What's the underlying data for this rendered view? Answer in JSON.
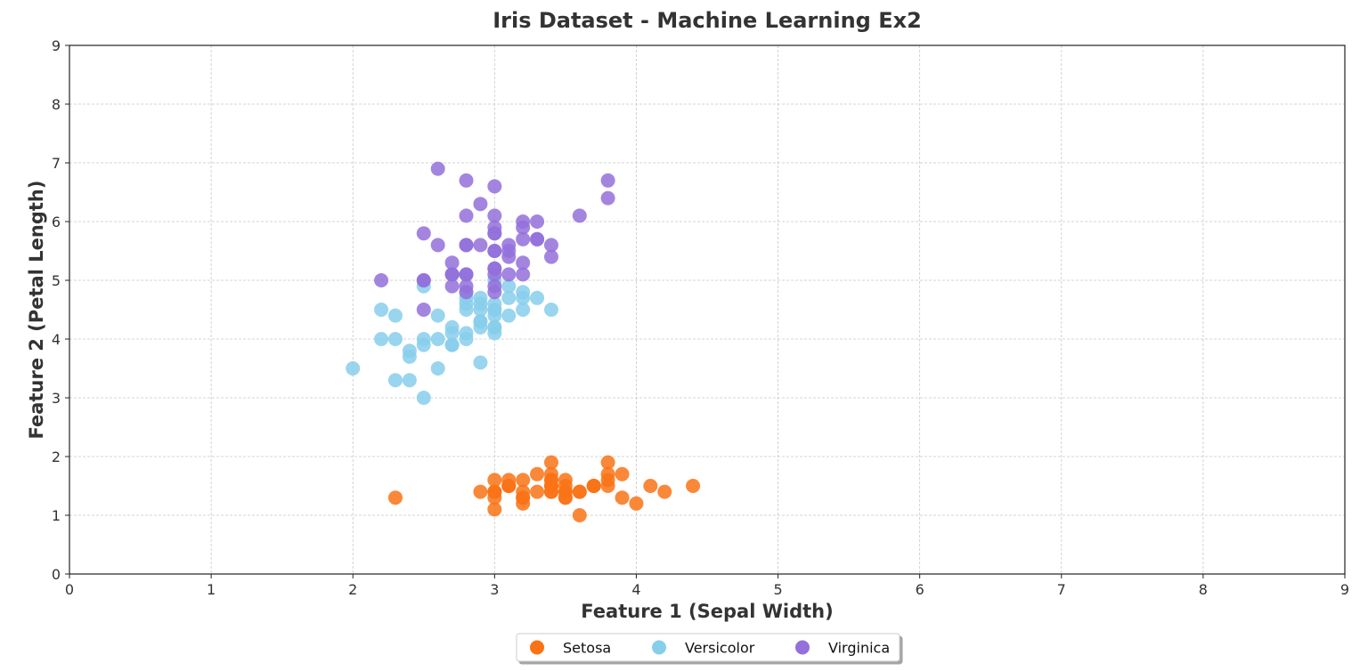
{
  "chart_data": {
    "type": "scatter",
    "title": "Iris Dataset - Machine Learning Ex2",
    "xlabel": "Feature 1 (Sepal Width)",
    "ylabel": "Feature 2 (Petal Length)",
    "xlim": [
      0,
      9
    ],
    "ylim": [
      0,
      9
    ],
    "x_ticks": [
      0,
      1,
      2,
      3,
      4,
      5,
      6,
      7,
      8,
      9
    ],
    "y_ticks": [
      0,
      1,
      2,
      3,
      4,
      5,
      6,
      7,
      8,
      9
    ],
    "grid": true,
    "legend_position": "bottom-center",
    "series": [
      {
        "name": "Setosa",
        "color": "#f97316",
        "points": [
          [
            3.5,
            1.4
          ],
          [
            3.0,
            1.4
          ],
          [
            3.2,
            1.3
          ],
          [
            3.1,
            1.5
          ],
          [
            3.6,
            1.4
          ],
          [
            3.9,
            1.7
          ],
          [
            3.4,
            1.4
          ],
          [
            3.4,
            1.5
          ],
          [
            2.9,
            1.4
          ],
          [
            3.1,
            1.5
          ],
          [
            3.7,
            1.5
          ],
          [
            3.4,
            1.6
          ],
          [
            3.0,
            1.4
          ],
          [
            3.0,
            1.1
          ],
          [
            4.0,
            1.2
          ],
          [
            4.4,
            1.5
          ],
          [
            3.9,
            1.3
          ],
          [
            3.5,
            1.4
          ],
          [
            3.8,
            1.7
          ],
          [
            3.8,
            1.5
          ],
          [
            3.4,
            1.7
          ],
          [
            3.7,
            1.5
          ],
          [
            3.6,
            1.0
          ],
          [
            3.3,
            1.7
          ],
          [
            3.4,
            1.9
          ],
          [
            3.0,
            1.6
          ],
          [
            3.4,
            1.6
          ],
          [
            3.5,
            1.5
          ],
          [
            3.4,
            1.4
          ],
          [
            3.2,
            1.6
          ],
          [
            3.1,
            1.6
          ],
          [
            3.4,
            1.5
          ],
          [
            4.1,
            1.5
          ],
          [
            4.2,
            1.4
          ],
          [
            3.1,
            1.5
          ],
          [
            3.2,
            1.2
          ],
          [
            3.5,
            1.3
          ],
          [
            3.6,
            1.4
          ],
          [
            3.0,
            1.3
          ],
          [
            3.4,
            1.5
          ],
          [
            3.5,
            1.3
          ],
          [
            2.3,
            1.3
          ],
          [
            3.2,
            1.3
          ],
          [
            3.5,
            1.6
          ],
          [
            3.8,
            1.9
          ],
          [
            3.0,
            1.4
          ],
          [
            3.8,
            1.6
          ],
          [
            3.2,
            1.4
          ],
          [
            3.7,
            1.5
          ],
          [
            3.3,
            1.4
          ]
        ]
      },
      {
        "name": "Versicolor",
        "color": "#87ceeb",
        "points": [
          [
            3.2,
            4.7
          ],
          [
            3.2,
            4.5
          ],
          [
            3.1,
            4.9
          ],
          [
            2.3,
            4.0
          ],
          [
            2.8,
            4.6
          ],
          [
            2.8,
            4.5
          ],
          [
            3.3,
            4.7
          ],
          [
            2.4,
            3.3
          ],
          [
            2.9,
            4.6
          ],
          [
            2.7,
            3.9
          ],
          [
            2.0,
            3.5
          ],
          [
            3.0,
            4.2
          ],
          [
            2.2,
            4.0
          ],
          [
            2.9,
            4.7
          ],
          [
            2.9,
            3.6
          ],
          [
            3.1,
            4.4
          ],
          [
            3.0,
            4.5
          ],
          [
            2.7,
            4.1
          ],
          [
            2.2,
            4.5
          ],
          [
            2.5,
            3.9
          ],
          [
            3.2,
            4.8
          ],
          [
            2.8,
            4.0
          ],
          [
            2.5,
            4.9
          ],
          [
            2.8,
            4.7
          ],
          [
            2.9,
            4.3
          ],
          [
            3.0,
            4.4
          ],
          [
            2.8,
            4.8
          ],
          [
            3.0,
            5.0
          ],
          [
            2.9,
            4.5
          ],
          [
            2.6,
            3.5
          ],
          [
            2.4,
            3.8
          ],
          [
            2.4,
            3.7
          ],
          [
            2.7,
            3.9
          ],
          [
            2.7,
            5.1
          ],
          [
            3.0,
            4.5
          ],
          [
            3.4,
            4.5
          ],
          [
            3.1,
            4.7
          ],
          [
            2.3,
            4.4
          ],
          [
            3.0,
            4.1
          ],
          [
            2.5,
            4.0
          ],
          [
            2.6,
            4.4
          ],
          [
            3.0,
            4.6
          ],
          [
            2.6,
            4.0
          ],
          [
            2.3,
            3.3
          ],
          [
            2.7,
            4.2
          ],
          [
            3.0,
            4.2
          ],
          [
            2.9,
            4.2
          ],
          [
            2.9,
            4.3
          ],
          [
            2.5,
            3.0
          ],
          [
            2.8,
            4.1
          ]
        ]
      },
      {
        "name": "Virginica",
        "color": "#9370db",
        "points": [
          [
            3.3,
            6.0
          ],
          [
            2.7,
            5.1
          ],
          [
            3.0,
            5.9
          ],
          [
            2.9,
            5.6
          ],
          [
            3.0,
            5.8
          ],
          [
            3.0,
            6.6
          ],
          [
            2.5,
            4.5
          ],
          [
            2.9,
            6.3
          ],
          [
            2.5,
            5.8
          ],
          [
            3.6,
            6.1
          ],
          [
            3.2,
            5.1
          ],
          [
            2.7,
            5.3
          ],
          [
            3.0,
            5.5
          ],
          [
            2.5,
            5.0
          ],
          [
            2.8,
            5.1
          ],
          [
            3.2,
            5.3
          ],
          [
            3.0,
            5.5
          ],
          [
            3.8,
            6.7
          ],
          [
            2.6,
            6.9
          ],
          [
            2.2,
            5.0
          ],
          [
            3.2,
            5.7
          ],
          [
            2.8,
            4.9
          ],
          [
            2.8,
            6.7
          ],
          [
            2.7,
            4.9
          ],
          [
            3.3,
            5.7
          ],
          [
            3.2,
            6.0
          ],
          [
            2.8,
            4.8
          ],
          [
            3.0,
            4.9
          ],
          [
            2.8,
            5.6
          ],
          [
            3.0,
            5.8
          ],
          [
            2.8,
            6.1
          ],
          [
            3.8,
            6.4
          ],
          [
            2.8,
            5.6
          ],
          [
            2.8,
            5.1
          ],
          [
            2.6,
            5.6
          ],
          [
            3.0,
            6.1
          ],
          [
            3.4,
            5.6
          ],
          [
            3.1,
            5.5
          ],
          [
            3.0,
            4.8
          ],
          [
            3.1,
            5.4
          ],
          [
            3.1,
            5.6
          ],
          [
            3.1,
            5.1
          ],
          [
            2.7,
            5.1
          ],
          [
            3.2,
            5.9
          ],
          [
            3.3,
            5.7
          ],
          [
            3.0,
            5.2
          ],
          [
            2.5,
            5.0
          ],
          [
            3.0,
            5.2
          ],
          [
            3.4,
            5.4
          ],
          [
            3.0,
            5.1
          ]
        ]
      }
    ]
  }
}
